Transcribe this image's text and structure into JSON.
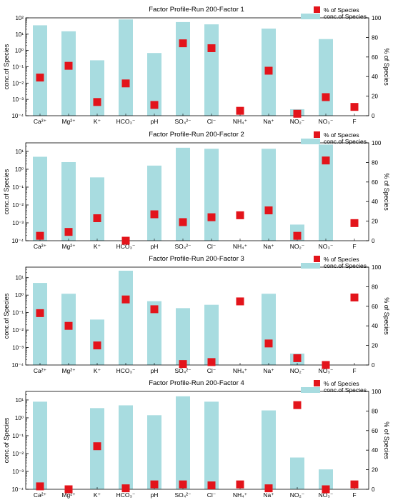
{
  "chart_data": [
    {
      "type": "bar",
      "title": "Factor Profile-Run 200-Factor 1",
      "categories": [
        "Ca2+",
        "Mg2+",
        "K+",
        "HCO3-",
        "pH",
        "SO42-",
        "Cl-",
        "NH4+",
        "Na+",
        "NO2-",
        "NO3-",
        "F"
      ],
      "ylabel_left": "conc.of Species",
      "ylabel_right": "% of Species",
      "y_left_scale": "log",
      "y_left_ticks": [
        "10⁻⁴",
        "10⁻³",
        "10⁻²",
        "10⁻¹",
        "10⁰",
        "10¹",
        "10²"
      ],
      "y_left_lim": [
        0.0001,
        100
      ],
      "y_right_lim": [
        0,
        100
      ],
      "y_right_ticks": [
        0,
        20,
        40,
        60,
        80,
        100
      ],
      "series": [
        {
          "name": "conc.of Species",
          "kind": "bar",
          "values": [
            35,
            15,
            0.25,
            80,
            0.7,
            55,
            40,
            null,
            22,
            0.00025,
            5,
            null
          ]
        },
        {
          "name": "% of Species",
          "kind": "marker",
          "values": [
            39,
            51,
            14,
            33,
            11,
            74,
            69,
            5,
            46,
            2,
            19,
            9
          ]
        }
      ]
    },
    {
      "type": "bar",
      "title": "Factor Profile-Run 200-Factor 2",
      "categories": [
        "Ca2+",
        "Mg2+",
        "K+",
        "HCO3-",
        "pH",
        "SO42-",
        "Cl-",
        "NH4+",
        "Na+",
        "NO2-",
        "NO3-",
        "F"
      ],
      "ylabel_left": "conc.of Species",
      "ylabel_right": "% of Species",
      "y_left_scale": "log",
      "y_left_ticks": [
        "10⁻⁴",
        "10⁻³",
        "10⁻²",
        "10⁻¹",
        "10⁰",
        "10¹"
      ],
      "y_left_lim": [
        0.0001,
        30
      ],
      "y_right_lim": [
        0,
        100
      ],
      "y_right_ticks": [
        0,
        20,
        40,
        60,
        80,
        100
      ],
      "series": [
        {
          "name": "conc.of Species",
          "kind": "bar",
          "values": [
            5,
            2.5,
            0.35,
            null,
            1.6,
            16,
            14,
            null,
            14,
            0.0008,
            24,
            null
          ]
        },
        {
          "name": "% of Species",
          "kind": "marker",
          "values": [
            5,
            9,
            23,
            0,
            27,
            19,
            24,
            26,
            31,
            5,
            82,
            18
          ]
        }
      ]
    },
    {
      "type": "bar",
      "title": "Factor Profile-Run 200-Factor 3",
      "categories": [
        "Ca2+",
        "Mg2+",
        "K+",
        "HCO3-",
        "pH",
        "SO42-",
        "Cl-",
        "NH4+",
        "Na+",
        "NO2-",
        "NO3-",
        "F"
      ],
      "ylabel_left": "conc.of Species",
      "ylabel_right": "% of Species",
      "y_left_scale": "log",
      "y_left_ticks": [
        "10⁻⁴",
        "10⁻³",
        "10⁻²",
        "10⁻¹",
        "10⁰",
        "10¹"
      ],
      "y_left_lim": [
        0.0001,
        40
      ],
      "y_right_lim": [
        0,
        100
      ],
      "y_right_ticks": [
        0,
        20,
        40,
        60,
        80,
        100
      ],
      "series": [
        {
          "name": "conc.of Species",
          "kind": "bar",
          "values": [
            5,
            1.2,
            0.04,
            25,
            0.45,
            0.18,
            0.28,
            null,
            1.2,
            0.00045,
            null,
            null
          ]
        },
        {
          "name": "% of Species",
          "kind": "marker",
          "values": [
            53,
            40,
            20,
            67,
            57,
            1,
            3,
            65,
            22,
            7,
            0,
            69
          ]
        }
      ]
    },
    {
      "type": "bar",
      "title": "Factor Profile-Run 200-Factor 4",
      "categories": [
        "Ca2+",
        "Mg2+",
        "K+",
        "HCO3-",
        "pH",
        "SO42-",
        "Cl-",
        "NH4+",
        "Na+",
        "NO2-",
        "NO3-",
        "F"
      ],
      "ylabel_left": "conc.of Species",
      "ylabel_right": "% of Species",
      "y_left_scale": "log",
      "y_left_ticks": [
        "10⁻⁴",
        "10⁻³",
        "10⁻²",
        "10⁻¹",
        "10⁰",
        "10¹"
      ],
      "y_left_lim": [
        0.0001,
        30
      ],
      "y_right_lim": [
        0,
        100
      ],
      "y_right_ticks": [
        0,
        20,
        40,
        60,
        80,
        100
      ],
      "series": [
        {
          "name": "conc.of Species",
          "kind": "bar",
          "values": [
            8,
            null,
            3.5,
            5,
            1.4,
            16,
            8,
            null,
            2.6,
            0.006,
            0.0013,
            null
          ]
        },
        {
          "name": "% of Species",
          "kind": "marker",
          "values": [
            3,
            0,
            44,
            1,
            5,
            5,
            4,
            5,
            1,
            86,
            0,
            5
          ]
        }
      ]
    }
  ],
  "category_labels": [
    "Ca²⁺",
    "Mg²⁺",
    "K⁺",
    "HCO₃⁻",
    "pH",
    "SO₄²⁻",
    "Cl⁻",
    "NH₄⁺",
    "Na⁺",
    "NO₂⁻",
    "NO₃⁻",
    "F"
  ],
  "colors": {
    "bar": "#a8dce0",
    "marker": "#e3141b",
    "axis": "#000000"
  }
}
